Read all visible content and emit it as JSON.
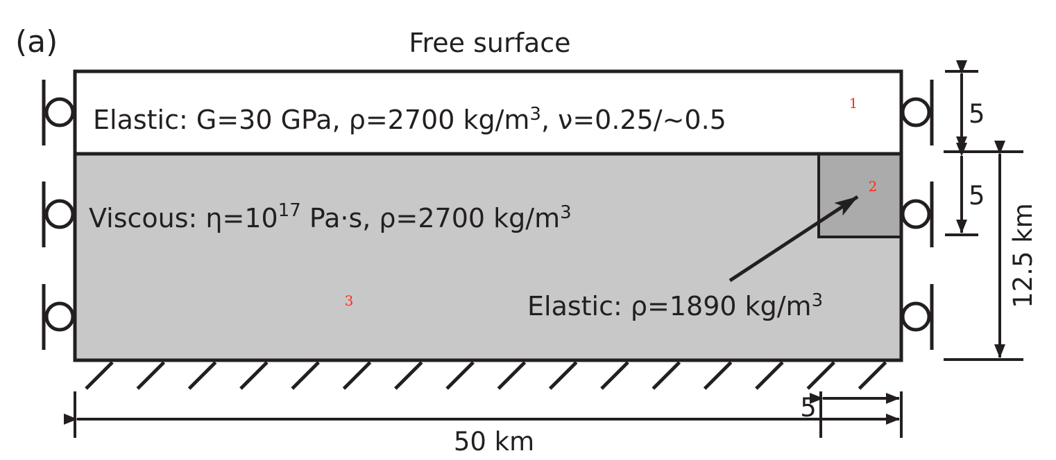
{
  "panel_label": "(a)",
  "top_boundary": "Free surface",
  "layers": [
    {
      "id": "1",
      "label_prefix": "Elastic: G=30 GPa, ρ=2700 kg/m",
      "label_sup": "3",
      "label_suffix": ",  ν=0.25/~0.5",
      "fill": "#ffffff"
    },
    {
      "id": "2",
      "label_prefix": "Elastic: ρ=1890 kg/m",
      "label_sup": "3",
      "fill": "#ababab"
    },
    {
      "id": "3",
      "label_prefix": "Viscous: η=10",
      "label_sup_exp": "17",
      "label_middle": " Pa·s, ρ=2700 kg/m",
      "label_sup": "3",
      "fill": "#c8c8c8"
    }
  ],
  "dimensions": {
    "width_total": "50 km",
    "width_block": "5",
    "height_total": "12.5 km",
    "height_top_layer": "5",
    "height_block": "5"
  },
  "colors": {
    "outline": "#231f20",
    "region_id": "#ff2b1a"
  }
}
